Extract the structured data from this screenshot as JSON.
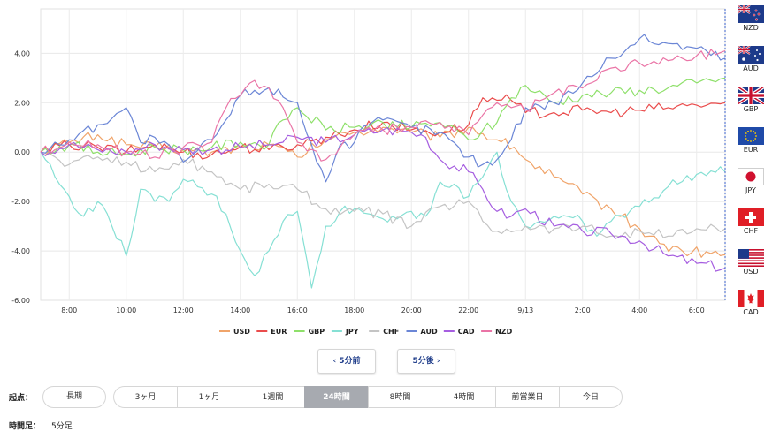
{
  "chart_data": {
    "type": "line",
    "y_ticks": [
      "4.00",
      "2.00",
      "0.00",
      "-2.00",
      "-4.00",
      "-6.00"
    ],
    "ylim": [
      -6,
      6
    ],
    "x_ticks": [
      "8:00",
      "10:00",
      "12:00",
      "14:00",
      "16:00",
      "18:00",
      "20:00",
      "22:00",
      "9/13",
      "2:00",
      "4:00",
      "6:00"
    ],
    "xlim": [
      7.0,
      31.0
    ],
    "grid": true,
    "legend_position": "bottom-center",
    "series": [
      {
        "name": "USD",
        "color": "#f0a46a",
        "points": [
          [
            7.0,
            0
          ],
          [
            8,
            0.4
          ],
          [
            9,
            0.7
          ],
          [
            10,
            0.3
          ],
          [
            11,
            0.2
          ],
          [
            12,
            0.1
          ],
          [
            13,
            0.0
          ],
          [
            14,
            0.2
          ],
          [
            15,
            0.3
          ],
          [
            16,
            -0.2
          ],
          [
            17,
            0.5
          ],
          [
            18,
            0.8
          ],
          [
            19,
            1.0
          ],
          [
            20,
            0.8
          ],
          [
            21,
            0.6
          ],
          [
            22,
            1.0
          ],
          [
            23,
            0.5
          ],
          [
            23.6,
            0.2
          ],
          [
            24,
            -0.3
          ],
          [
            25,
            -1.0
          ],
          [
            26,
            -1.7
          ],
          [
            27,
            -2.3
          ],
          [
            28,
            -3.1
          ],
          [
            28.7,
            -3.7
          ],
          [
            29.5,
            -4.0
          ],
          [
            30.5,
            -4.1
          ],
          [
            31,
            -4.15
          ]
        ]
      },
      {
        "name": "EUR",
        "color": "#ea4c4c",
        "points": [
          [
            7.0,
            0
          ],
          [
            8,
            0.3
          ],
          [
            9,
            0.2
          ],
          [
            10,
            0.0
          ],
          [
            11,
            0.3
          ],
          [
            12,
            0.0
          ],
          [
            13,
            -0.1
          ],
          [
            14,
            0.2
          ],
          [
            15,
            0.1
          ],
          [
            16,
            0.3
          ],
          [
            17,
            0.6
          ],
          [
            18,
            0.9
          ],
          [
            19,
            1.2
          ],
          [
            20,
            0.9
          ],
          [
            21,
            0.8
          ],
          [
            22,
            1.1
          ],
          [
            22.5,
            2.2
          ],
          [
            23,
            2.1
          ],
          [
            23.5,
            2.1
          ],
          [
            24,
            1.6
          ],
          [
            25,
            1.6
          ],
          [
            26,
            1.7
          ],
          [
            27,
            1.6
          ],
          [
            28,
            1.7
          ],
          [
            29,
            1.8
          ],
          [
            30,
            1.9
          ],
          [
            31,
            2.0
          ]
        ]
      },
      {
        "name": "GBP",
        "color": "#8ee06a",
        "points": [
          [
            7.0,
            0
          ],
          [
            8,
            0.3
          ],
          [
            9,
            0.0
          ],
          [
            10,
            -0.1
          ],
          [
            11,
            0.2
          ],
          [
            12,
            0.1
          ],
          [
            13,
            0.2
          ],
          [
            14,
            0.4
          ],
          [
            15,
            0.3
          ],
          [
            15.5,
            1.3
          ],
          [
            16,
            1.8
          ],
          [
            17,
            0.9
          ],
          [
            18,
            1.0
          ],
          [
            19,
            1.2
          ],
          [
            20,
            1.0
          ],
          [
            21,
            1.2
          ],
          [
            22,
            0.5
          ],
          [
            23,
            1.2
          ],
          [
            23.5,
            2.2
          ],
          [
            24,
            2.7
          ],
          [
            25,
            2.0
          ],
          [
            26,
            2.3
          ],
          [
            27,
            2.4
          ],
          [
            28,
            2.5
          ],
          [
            29,
            2.6
          ],
          [
            30,
            2.8
          ],
          [
            31,
            3.0
          ]
        ]
      },
      {
        "name": "JPY",
        "color": "#86e0d4",
        "points": [
          [
            7.0,
            0
          ],
          [
            7.5,
            -1.0
          ],
          [
            8,
            -1.8
          ],
          [
            8.5,
            -2.6
          ],
          [
            9,
            -2.0
          ],
          [
            9.5,
            -3.0
          ],
          [
            10,
            -4.2
          ],
          [
            10.5,
            -1.5
          ],
          [
            11,
            -2.0
          ],
          [
            11.5,
            -2.0
          ],
          [
            12,
            -1.1
          ],
          [
            12.5,
            -1.4
          ],
          [
            13,
            -1.7
          ],
          [
            13.5,
            -2.5
          ],
          [
            14,
            -4.0
          ],
          [
            14.5,
            -5.0
          ],
          [
            15,
            -4.0
          ],
          [
            15.5,
            -2.8
          ],
          [
            16,
            -2.4
          ],
          [
            16.5,
            -5.5
          ],
          [
            17,
            -3.0
          ],
          [
            17.5,
            -2.4
          ],
          [
            18,
            -2.3
          ],
          [
            18.5,
            -2.5
          ],
          [
            19,
            -2.7
          ],
          [
            20,
            -2.4
          ],
          [
            20.5,
            -2.6
          ],
          [
            21,
            -1.2
          ],
          [
            22,
            -1.8
          ],
          [
            22.5,
            -1.0
          ],
          [
            23,
            0.0
          ],
          [
            23.5,
            -2.0
          ],
          [
            24,
            -3.0
          ],
          [
            25,
            -2.6
          ],
          [
            26,
            -2.8
          ],
          [
            26.5,
            -3.4
          ],
          [
            27,
            -2.8
          ],
          [
            28,
            -2.2
          ],
          [
            29,
            -1.4
          ],
          [
            30,
            -0.9
          ],
          [
            31,
            -0.8
          ]
        ]
      },
      {
        "name": "CHF",
        "color": "#c4c4c4",
        "points": [
          [
            7.0,
            0
          ],
          [
            8,
            -0.5
          ],
          [
            9,
            -0.2
          ],
          [
            10,
            -0.4
          ],
          [
            11,
            -0.8
          ],
          [
            12,
            -0.3
          ],
          [
            13,
            -0.8
          ],
          [
            14,
            -1.5
          ],
          [
            15,
            -1.3
          ],
          [
            16,
            -1.5
          ],
          [
            17,
            -2.3
          ],
          [
            18,
            -2.4
          ],
          [
            19,
            -2.5
          ],
          [
            20,
            -3.0
          ],
          [
            21,
            -2.2
          ],
          [
            22,
            -2.0
          ],
          [
            22.5,
            -2.8
          ],
          [
            23,
            -3.2
          ],
          [
            24,
            -3.0
          ],
          [
            25,
            -3.1
          ],
          [
            26,
            -3.0
          ],
          [
            27,
            -3.4
          ],
          [
            28,
            -3.2
          ],
          [
            29,
            -3.4
          ],
          [
            30,
            -3.1
          ],
          [
            31,
            -3.1
          ]
        ]
      },
      {
        "name": "AUD",
        "color": "#6b86d6",
        "points": [
          [
            7.0,
            0
          ],
          [
            8,
            0.5
          ],
          [
            9,
            1.1
          ],
          [
            10,
            1.8
          ],
          [
            10.5,
            0.4
          ],
          [
            11,
            0.6
          ],
          [
            12,
            -0.4
          ],
          [
            13,
            0.5
          ],
          [
            13.5,
            1.3
          ],
          [
            14,
            2.3
          ],
          [
            14.5,
            2.5
          ],
          [
            15,
            2.6
          ],
          [
            16,
            2.0
          ],
          [
            16.5,
            0.3
          ],
          [
            17,
            -1.2
          ],
          [
            17.5,
            0.3
          ],
          [
            18,
            0.4
          ],
          [
            18.5,
            1.1
          ],
          [
            19,
            1.3
          ],
          [
            20,
            1.0
          ],
          [
            21,
            0.8
          ],
          [
            22,
            -0.2
          ],
          [
            22.5,
            -0.5
          ],
          [
            23,
            -0.3
          ],
          [
            23.5,
            0.5
          ],
          [
            24,
            1.8
          ],
          [
            25,
            2.0
          ],
          [
            26,
            2.8
          ],
          [
            27,
            3.8
          ],
          [
            28,
            4.6
          ],
          [
            29,
            4.4
          ],
          [
            30,
            4.2
          ],
          [
            31,
            3.8
          ]
        ]
      },
      {
        "name": "CAD",
        "color": "#a65ee0",
        "points": [
          [
            7.0,
            0
          ],
          [
            8,
            0.3
          ],
          [
            9,
            0.1
          ],
          [
            10,
            0.0
          ],
          [
            11,
            0.3
          ],
          [
            12,
            0.1
          ],
          [
            13,
            0.1
          ],
          [
            14,
            0.2
          ],
          [
            15,
            0.3
          ],
          [
            15.5,
            0.4
          ],
          [
            16,
            0.6
          ],
          [
            17,
            0.4
          ],
          [
            18,
            0.7
          ],
          [
            19,
            0.9
          ],
          [
            20,
            0.8
          ],
          [
            20.5,
            0.6
          ],
          [
            21,
            -0.3
          ],
          [
            22,
            -0.8
          ],
          [
            22.5,
            -1.5
          ],
          [
            23,
            -2.4
          ],
          [
            23.5,
            -2.6
          ],
          [
            24,
            -2.3
          ],
          [
            25,
            -3.0
          ],
          [
            26,
            -3.2
          ],
          [
            27,
            -3.3
          ],
          [
            28,
            -3.6
          ],
          [
            29,
            -4.2
          ],
          [
            30,
            -4.5
          ],
          [
            31,
            -4.7
          ]
        ]
      },
      {
        "name": "NZD",
        "color": "#ea74a6",
        "points": [
          [
            7.0,
            0
          ],
          [
            8,
            0.4
          ],
          [
            9,
            0.3
          ],
          [
            10,
            0.0
          ],
          [
            11,
            -0.2
          ],
          [
            12,
            0.2
          ],
          [
            13,
            0.4
          ],
          [
            13.5,
            1.8
          ],
          [
            14,
            2.3
          ],
          [
            14.5,
            2.9
          ],
          [
            15,
            2.6
          ],
          [
            15.5,
            1.8
          ],
          [
            16,
            0.4
          ],
          [
            17,
            -0.3
          ],
          [
            18,
            0.7
          ],
          [
            19,
            0.9
          ],
          [
            20,
            1.0
          ],
          [
            21,
            1.2
          ],
          [
            22,
            0.7
          ],
          [
            22.5,
            1.5
          ],
          [
            23,
            2.0
          ],
          [
            23.5,
            1.8
          ],
          [
            24,
            1.7
          ],
          [
            25,
            2.4
          ],
          [
            26,
            2.6
          ],
          [
            27,
            3.4
          ],
          [
            28,
            3.6
          ],
          [
            29,
            3.7
          ],
          [
            30,
            3.9
          ],
          [
            31,
            4.1
          ]
        ]
      }
    ]
  },
  "flags": [
    {
      "code": "NZD",
      "icon": "nz-flag-icon"
    },
    {
      "code": "AUD",
      "icon": "au-flag-icon"
    },
    {
      "code": "GBP",
      "icon": "gb-flag-icon"
    },
    {
      "code": "EUR",
      "icon": "eu-flag-icon"
    },
    {
      "code": "JPY",
      "icon": "jp-flag-icon"
    },
    {
      "code": "CHF",
      "icon": "ch-flag-icon"
    },
    {
      "code": "USD",
      "icon": "us-flag-icon"
    },
    {
      "code": "CAD",
      "icon": "ca-flag-icon"
    }
  ],
  "nav": {
    "prev_label": "‹ 5分前",
    "next_label": "5分後 ›"
  },
  "origin": {
    "label": "起点：",
    "long_term": "長期",
    "options": [
      "3ヶ月",
      "1ヶ月",
      "1週間",
      "24時間",
      "8時間",
      "4時間",
      "前営業日",
      "今日"
    ],
    "active": "24時間"
  },
  "timeframe": {
    "label": "時間足：",
    "value": "5分足"
  }
}
